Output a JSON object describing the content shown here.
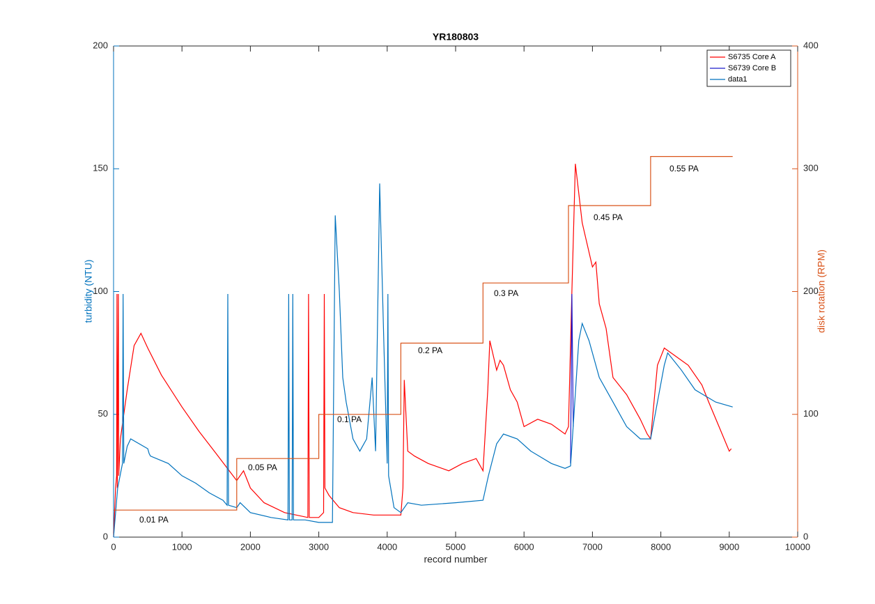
{
  "chart_data": {
    "type": "line",
    "title": "YR180803",
    "xlabel": "record number",
    "ylabel": "turbidity (NTU)",
    "y2label": "disk rotation (RPM)",
    "xlim": [
      0,
      10000
    ],
    "xticks": [
      0,
      1000,
      2000,
      3000,
      4000,
      5000,
      6000,
      7000,
      8000,
      9000,
      10000
    ],
    "ylim": [
      0,
      200
    ],
    "yticks": [
      0,
      50,
      100,
      150,
      200
    ],
    "y2lim": [
      0,
      400
    ],
    "y2ticks": [
      0,
      100,
      200,
      300,
      400
    ],
    "ycolor": "#0072bd",
    "y2color": "#d95319",
    "grid": false,
    "legend": "northeast",
    "series": [
      {
        "name": "S6735 Core A",
        "color": "#ff0000",
        "x": [
          0,
          30,
          45,
          50,
          55,
          70,
          75,
          100,
          200,
          300,
          400,
          500,
          700,
          1000,
          1250,
          1500,
          1800,
          1900,
          2000,
          2200,
          2500,
          2840,
          2850,
          2860,
          3000,
          3070,
          3080,
          3090,
          3150,
          3300,
          3500,
          3800,
          4200,
          4230,
          4250,
          4300,
          4400,
          4600,
          4900,
          5100,
          5300,
          5400,
          5470,
          5500,
          5600,
          5650,
          5700,
          5800,
          5900,
          6000,
          6200,
          6400,
          6600,
          6650,
          6700,
          6750,
          6800,
          6850,
          6900,
          7000,
          7050,
          7100,
          7200,
          7300,
          7500,
          7700,
          7800,
          7850,
          7900,
          7950,
          8050,
          8200,
          8400,
          8600,
          8700,
          8850,
          9000,
          9030
        ],
        "values": [
          0,
          20,
          25,
          99,
          20,
          99,
          25,
          40,
          60,
          78,
          83,
          77,
          66,
          53,
          43,
          34,
          23,
          27,
          20,
          14,
          10,
          8,
          99,
          8,
          8,
          10,
          99,
          20,
          17,
          12,
          10,
          9,
          9,
          20,
          64,
          35,
          33,
          30,
          27,
          30,
          32,
          27,
          60,
          80,
          68,
          72,
          70,
          60,
          55,
          45,
          48,
          46,
          42,
          45,
          100,
          152,
          140,
          128,
          122,
          110,
          112,
          95,
          85,
          65,
          58,
          48,
          42,
          40,
          55,
          70,
          77,
          74,
          70,
          62,
          55,
          45,
          35,
          36
        ]
      },
      {
        "name": "S6739 Core B",
        "color": "#1a1acc",
        "x": [
          6680,
          6700,
          6720
        ],
        "values": [
          30,
          99,
          45
        ]
      },
      {
        "name": "data1",
        "color": "#0072bd",
        "x": [
          0,
          60,
          130,
          140,
          150,
          200,
          250,
          500,
          520,
          540,
          800,
          1000,
          1200,
          1400,
          1600,
          1660,
          1670,
          1680,
          1800,
          1850,
          2000,
          2300,
          2550,
          2560,
          2570,
          2610,
          2620,
          2630,
          2800,
          3000,
          3200,
          3240,
          3300,
          3350,
          3400,
          3500,
          3600,
          3700,
          3780,
          3830,
          3890,
          3950,
          4000,
          4010,
          4020,
          4100,
          4200,
          4300,
          4500,
          5000,
          5400,
          5480,
          5600,
          5700,
          5900,
          6100,
          6400,
          6600,
          6680,
          6730,
          6800,
          6850,
          6950,
          7100,
          7300,
          7500,
          7700,
          7850,
          7950,
          8050,
          8100,
          8300,
          8500,
          8800,
          9050
        ],
        "values": [
          0,
          20,
          30,
          99,
          30,
          37,
          40,
          36,
          34,
          33,
          30,
          25,
          22,
          18,
          15,
          13,
          99,
          13,
          12,
          14,
          10,
          8,
          7,
          99,
          7,
          7,
          99,
          7,
          7,
          6,
          6,
          131,
          100,
          65,
          55,
          40,
          35,
          40,
          65,
          35,
          144,
          80,
          30,
          99,
          25,
          12,
          10,
          14,
          13,
          14,
          15,
          25,
          38,
          42,
          40,
          35,
          30,
          28,
          29,
          50,
          80,
          87,
          80,
          65,
          55,
          45,
          40,
          40,
          55,
          70,
          75,
          68,
          60,
          55,
          53
        ]
      },
      {
        "color": "#d95319",
        "axis": "y2",
        "x": [
          0,
          1800,
          1800,
          3000,
          3000,
          4200,
          4200,
          5400,
          5400,
          6650,
          6650,
          7850,
          7850,
          9050
        ],
        "values": [
          22,
          22,
          64,
          64,
          100,
          100,
          158,
          158,
          207,
          207,
          270,
          270,
          310,
          310
        ]
      }
    ],
    "annotations": [
      "0.01 PA",
      "0.05 PA",
      "0.1 PA",
      "0.2 PA",
      "0.3 PA",
      "0.45 PA",
      "0.55 PA"
    ]
  }
}
